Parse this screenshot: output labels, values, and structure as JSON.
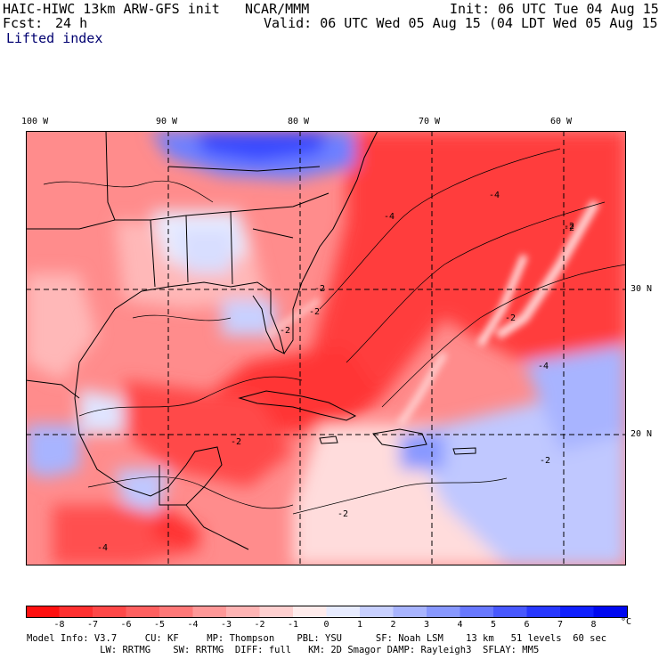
{
  "header": {
    "model_title": "HAIC-HIWC 13km ARW-GFS init",
    "org": "NCAR/MMM",
    "init": "Init: 06 UTC Tue 04 Aug 15",
    "fcst_label": "Fcst:",
    "fcst_value": "24 h",
    "valid": "Valid: 06 UTC Wed 05 Aug 15 (04 LDT Wed 05 Aug 15)",
    "field_name": "Lifted index"
  },
  "map": {
    "lon_labels": [
      "100 W",
      "90 W",
      "80 W",
      "70 W",
      "60 W"
    ],
    "lat_labels": [
      "30 N",
      "20 N"
    ],
    "contour_labels": [
      "-4",
      "-2",
      "-2",
      "-2",
      "-4",
      "-2",
      "-2",
      "-4",
      "-2",
      "-2",
      "-2",
      "-2",
      "-4"
    ]
  },
  "colorbar": {
    "ticks": [
      "-8",
      "-7",
      "-6",
      "-5",
      "-4",
      "-3",
      "-2",
      "-1",
      "0",
      "1",
      "2",
      "3",
      "4",
      "5",
      "6",
      "7",
      "8"
    ],
    "unit": "°C",
    "colors": [
      "#ff1010",
      "#ff3030",
      "#ff4848",
      "#ff6060",
      "#ff7878",
      "#ff9898",
      "#ffb4b4",
      "#ffd0d0",
      "#ffecec",
      "#e8ecff",
      "#c8d0ff",
      "#a8b4ff",
      "#8898ff",
      "#6878ff",
      "#4858ff",
      "#2838ff",
      "#1020ff",
      "#0008f0"
    ]
  },
  "model_info": {
    "line1": "Model Info: V3.7     CU: KF     MP: Thompson    PBL: YSU      SF: Noah LSM    13 km   51 levels  60 sec",
    "line2": "             LW: RRTMG    SW: RRTMG  DIFF: full   KM: 2D Smagor DAMP: Rayleigh3  SFLAY: MM5"
  }
}
